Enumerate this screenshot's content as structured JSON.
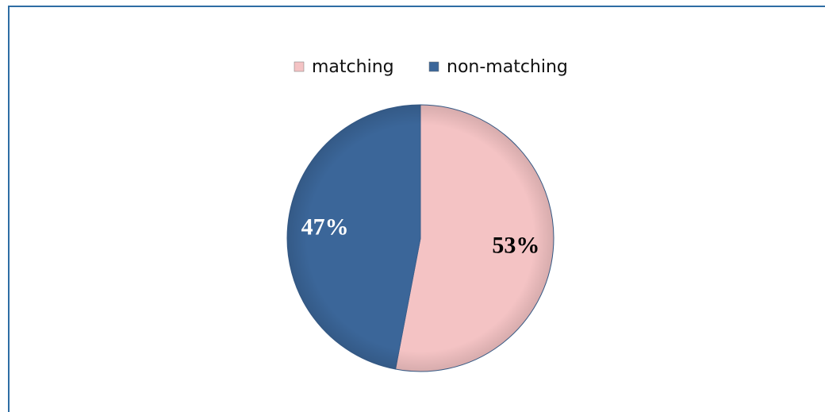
{
  "chart_data": {
    "type": "pie",
    "categories": [
      "matching",
      "non-matching"
    ],
    "values": [
      53,
      47
    ],
    "value_labels": [
      "53%",
      "47%"
    ],
    "colors": [
      "#f4c3c4",
      "#3b6699"
    ],
    "label_colors": [
      "#000000",
      "#ffffff"
    ],
    "legend": "top"
  }
}
